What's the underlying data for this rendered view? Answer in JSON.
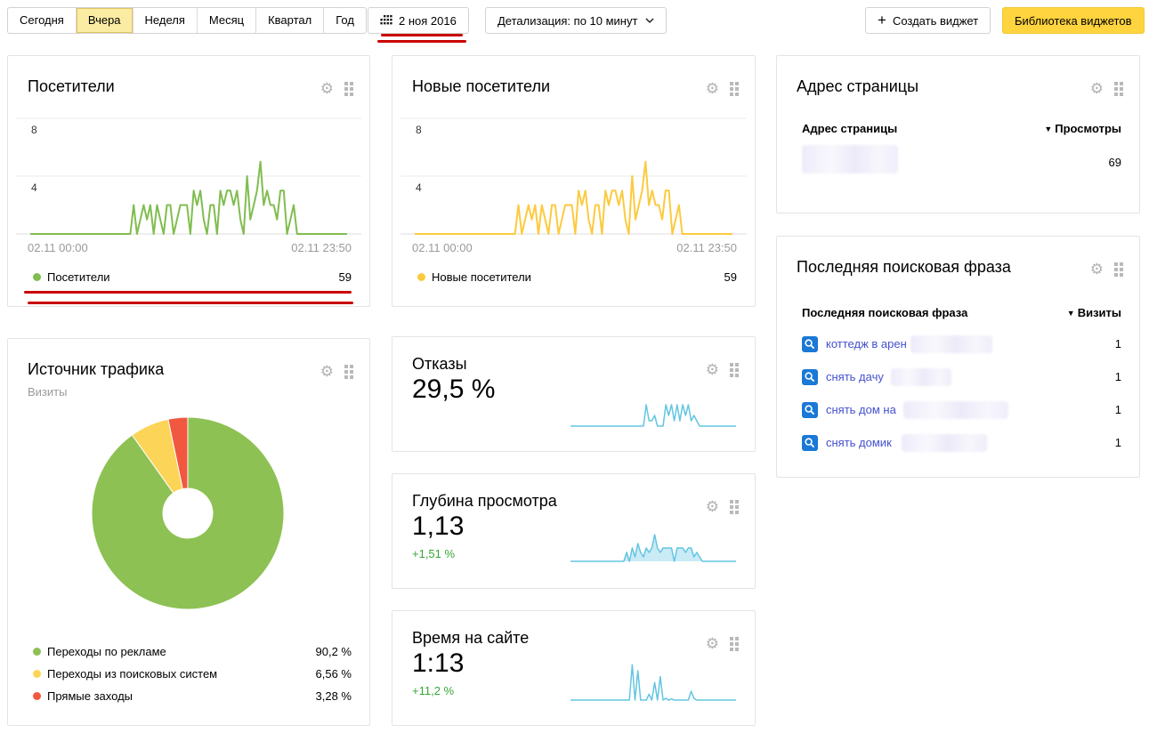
{
  "toolbar": {
    "tabs": [
      {
        "label": "Сегодня",
        "selected": false
      },
      {
        "label": "Вчера",
        "selected": true
      },
      {
        "label": "Неделя",
        "selected": false
      },
      {
        "label": "Месяц",
        "selected": false
      },
      {
        "label": "Квартал",
        "selected": false
      },
      {
        "label": "Год",
        "selected": false
      }
    ],
    "date_label": "2 ноя 2016",
    "detail_label": "Детализация: по 10 минут",
    "create_widget_plus": "+",
    "create_widget_label": "Создать виджет",
    "library_label": "Библиотека виджетов"
  },
  "widgets": {
    "visitors": {
      "title": "Посетители",
      "y_ticks": [
        "8",
        "4"
      ],
      "x_start": "02.11 00:00",
      "x_end": "02.11 23:50",
      "legend_label": "Посетители",
      "legend_value": "59",
      "color": "#80bd4f",
      "ymax": 8,
      "points": [
        0,
        0,
        0,
        0,
        0,
        0,
        0,
        0,
        0,
        0,
        0,
        0,
        0,
        0,
        0,
        0,
        0,
        0,
        0,
        0,
        0,
        0,
        0,
        0,
        0,
        0,
        0,
        0,
        0,
        0,
        0,
        2,
        0,
        1,
        2,
        1,
        2,
        0,
        2,
        1,
        0,
        2,
        2,
        0,
        1,
        2,
        2,
        2,
        0,
        3,
        2,
        3,
        1,
        0,
        2,
        2,
        0,
        3,
        2,
        3,
        3,
        2,
        3,
        1,
        0,
        4,
        1,
        2,
        3,
        5,
        2,
        3,
        2,
        2,
        1,
        3,
        3,
        0,
        1,
        2,
        0,
        0,
        0,
        0,
        0,
        0,
        0,
        0,
        0,
        0,
        0,
        0,
        0,
        0,
        0,
        0
      ]
    },
    "new_visitors": {
      "title": "Новые посетители",
      "y_ticks": [
        "8",
        "4"
      ],
      "x_start": "02.11 00:00",
      "x_end": "02.11 23:50",
      "legend_label": "Новые посетители",
      "legend_value": "59",
      "color": "#fcca3f",
      "ymax": 8,
      "points": [
        0,
        0,
        0,
        0,
        0,
        0,
        0,
        0,
        0,
        0,
        0,
        0,
        0,
        0,
        0,
        0,
        0,
        0,
        0,
        0,
        0,
        0,
        0,
        0,
        0,
        0,
        0,
        0,
        0,
        0,
        0,
        2,
        0,
        1,
        2,
        1,
        2,
        0,
        2,
        1,
        0,
        2,
        2,
        0,
        1,
        2,
        2,
        2,
        0,
        3,
        2,
        3,
        1,
        0,
        2,
        2,
        0,
        3,
        2,
        3,
        3,
        2,
        3,
        1,
        0,
        4,
        1,
        2,
        3,
        5,
        2,
        3,
        2,
        2,
        1,
        3,
        3,
        0,
        1,
        2,
        0,
        0,
        0,
        0,
        0,
        0,
        0,
        0,
        0,
        0,
        0,
        0,
        0,
        0,
        0,
        0
      ]
    },
    "traffic_source": {
      "title": "Источник трафика",
      "subtitle": "Визиты",
      "slices": [
        {
          "label": "Переходы по рекламе",
          "pct": 90.2,
          "display": "90,2 %",
          "color": "#8dc153"
        },
        {
          "label": "Переходы из поисковых систем",
          "pct": 6.56,
          "display": "6,56 %",
          "color": "#fcd457"
        },
        {
          "label": "Прямые заходы",
          "pct": 3.28,
          "display": "3,28 %",
          "color": "#f1583f"
        }
      ]
    },
    "bounces": {
      "title": "Отказы",
      "value": "29,5 %",
      "color": "#63c5e2",
      "points": [
        0,
        0,
        0,
        0,
        0,
        0,
        0,
        0,
        0,
        0,
        0,
        0,
        0,
        0,
        0,
        0,
        0,
        0,
        0,
        0,
        0,
        0,
        0,
        0,
        0,
        0,
        0,
        4,
        1,
        1,
        2,
        0,
        0,
        0,
        4,
        2,
        4,
        1,
        4,
        1,
        4,
        2,
        4,
        1,
        2,
        1,
        0,
        0,
        0,
        0,
        0,
        0,
        0,
        0,
        0,
        0,
        0,
        0,
        0,
        0
      ]
    },
    "depth": {
      "title": "Глубина просмотра",
      "value": "1,13",
      "delta": "+1,51 %",
      "color": "#63c5e2",
      "fill": "rgba(99,197,226,0.35)",
      "points": [
        0,
        0,
        0,
        0,
        0,
        0,
        0,
        0,
        0,
        0,
        0,
        0,
        0,
        0,
        0,
        0,
        0,
        0,
        0,
        0,
        2,
        0,
        3,
        1,
        4,
        2,
        1,
        3,
        2,
        3,
        6,
        3,
        2,
        3,
        3,
        3,
        3,
        0,
        3,
        3,
        3,
        2,
        3,
        3,
        1,
        2,
        1,
        0,
        0,
        0,
        0,
        0,
        0,
        0,
        0,
        0,
        0,
        0,
        0,
        0
      ]
    },
    "time_on_site": {
      "title": "Время на сайте",
      "value": "1:13",
      "delta": "+11,2 %",
      "color": "#63c5e2",
      "points": [
        0,
        0,
        0,
        0,
        0,
        0,
        0,
        0,
        0,
        0,
        0,
        0,
        0,
        0,
        0,
        0,
        0,
        0,
        0,
        0,
        0,
        0,
        6,
        0,
        5,
        0,
        0,
        0,
        1,
        0,
        3,
        0,
        4,
        0,
        0.3,
        0,
        0.2,
        0,
        0,
        0,
        0,
        0,
        0,
        1.5,
        0.3,
        0,
        0,
        0,
        0,
        0,
        0,
        0,
        0,
        0,
        0,
        0,
        0,
        0,
        0,
        0
      ]
    },
    "page_url": {
      "title": "Адрес страницы",
      "col_left": "Адрес страницы",
      "sort_arrow": "▼",
      "col_right": "Просмотры",
      "rows": [
        {
          "value": "69"
        }
      ]
    },
    "last_search": {
      "title": "Последняя поисковая фраза",
      "col_left": "Последняя поисковая фраза",
      "sort_arrow": "▼",
      "col_right": "Визиты",
      "rows": [
        {
          "text": "коттедж в арен",
          "value": "1"
        },
        {
          "text": "снять дачу",
          "value": "1"
        },
        {
          "text": "снять дом на",
          "value": "1"
        },
        {
          "text": "снять домик",
          "value": "1"
        }
      ]
    }
  }
}
